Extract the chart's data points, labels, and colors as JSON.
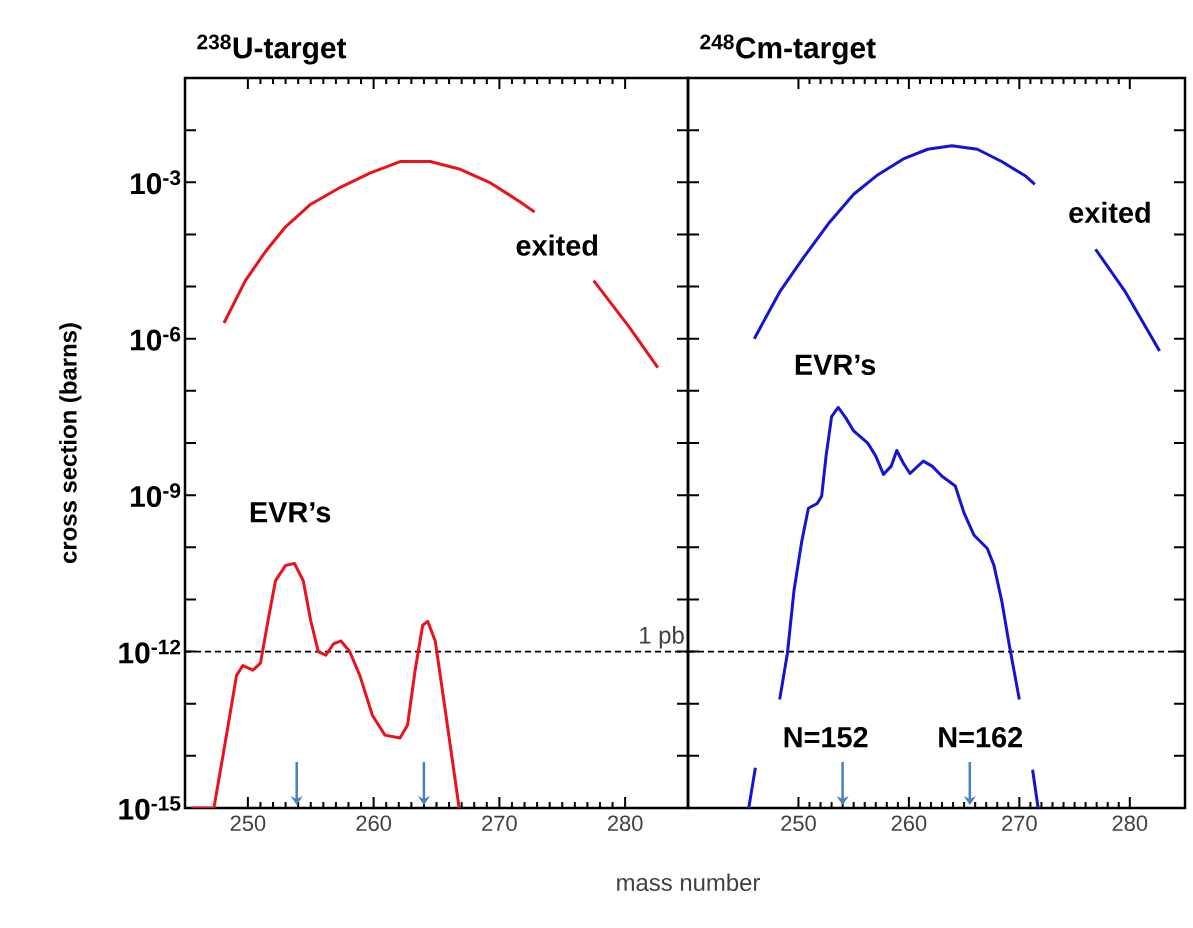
{
  "chart_data": [
    {
      "type": "line",
      "title": "$^{238}$U-target",
      "xlabel": "mass number",
      "ylabel": "cross section  (barns)",
      "log": "y",
      "xlim": [
        245,
        285
      ],
      "ylim": [
        1e-15,
        0.1
      ],
      "xticks": [
        250,
        260,
        270,
        280
      ],
      "yticks": [
        {
          "value": 1e-15,
          "label": "10$^{-15}$"
        },
        {
          "value": 1e-14,
          "label": null
        },
        {
          "value": 1e-13,
          "label": null
        },
        {
          "value": 1e-12,
          "label": "10$^{-12}$"
        },
        {
          "value": 1e-11,
          "label": null
        },
        {
          "value": 1e-10,
          "label": null
        },
        {
          "value": 1e-09,
          "label": "10$^{-9}$"
        },
        {
          "value": 1e-08,
          "label": null
        },
        {
          "value": 1e-07,
          "label": null
        },
        {
          "value": 1e-06,
          "label": "10$^{-6}$"
        },
        {
          "value": 1e-05,
          "label": null
        },
        {
          "value": 0.0001,
          "label": null
        },
        {
          "value": 0.001,
          "label": "10$^{-3}$"
        },
        {
          "value": 0.01,
          "label": null
        }
      ],
      "series": [
        {
          "color": "#e8141c",
          "x": [
            248.1,
            249.8,
            251.4,
            253.0,
            255.0,
            257.4,
            259.7,
            262.1,
            264.5,
            266.8,
            269.2,
            271.6,
            272.8,
            275,
            277.5,
            280.3,
            282.6
          ],
          "values": [
            2e-06,
            1.3e-05,
            4.7e-05,
            0.00014,
            0.00038,
            0.00081,
            0.0015,
            0.0025,
            0.0025,
            0.0018,
            0.001,
            0.00043,
            0.00027,
            null,
            1.3e-05,
            1.7e-06,
            2.8e-07
          ]
        },
        {
          "color": "#e8141c",
          "x": [
            245.5,
            247.3,
            248.3,
            249.1,
            249.6,
            250.4,
            251.0,
            251.6,
            252.2,
            253.0,
            253.7,
            254.4,
            255.0,
            255.6,
            256.2,
            256.8,
            257.4,
            258.1,
            258.9,
            259.9,
            260.9,
            262.1,
            262.7,
            263.3,
            263.9,
            264.3,
            264.9,
            265.7,
            266.8
          ],
          "values": [
            1e-15,
            1e-15,
            2.5e-14,
            3.5e-13,
            5.4e-13,
            4.4e-13,
            6e-13,
            3.9e-12,
            2.3e-11,
            4.5e-11,
            4.9e-11,
            2.3e-11,
            3.9e-12,
            1e-12,
            8.5e-13,
            1.4e-12,
            1.6e-12,
            1e-12,
            3.5e-13,
            6e-14,
            2.5e-14,
            2.2e-14,
            3.9e-14,
            4.4e-13,
            3.2e-12,
            3.8e-12,
            1.6e-12,
            7.4e-14,
            1e-15
          ]
        }
      ],
      "ref_lines": [
        {
          "axis": "y",
          "value": 1e-12,
          "label": "1 pb",
          "color": "#000000",
          "line_style": "dashed"
        }
      ],
      "annotations": [
        "exited",
        "EVR’s"
      ]
    },
    {
      "type": "line",
      "title": "$^{248}$Cm-target",
      "log": "y",
      "xlim": [
        240,
        285
      ],
      "ylim": [
        1e-15,
        0.1
      ],
      "tick_labels": "x",
      "xticks": [
        250,
        260,
        270,
        280
      ],
      "yticks": [
        {
          "value": 1e-15,
          "label": null
        },
        {
          "value": 1e-14,
          "label": null
        },
        {
          "value": 1e-13,
          "label": null
        },
        {
          "value": 1e-12,
          "label": null
        },
        {
          "value": 1e-11,
          "label": null
        },
        {
          "value": 1e-10,
          "label": null
        },
        {
          "value": 1e-09,
          "label": null
        },
        {
          "value": 1e-08,
          "label": null
        },
        {
          "value": 1e-07,
          "label": null
        },
        {
          "value": 1e-06,
          "label": null
        },
        {
          "value": 1e-05,
          "label": null
        },
        {
          "value": 0.0001,
          "label": null
        },
        {
          "value": 0.001,
          "label": null
        },
        {
          "value": 0.01,
          "label": null
        }
      ],
      "series": [
        {
          "color": "#1414d2",
          "x": [
            246.0,
            248.3,
            250.5,
            252.8,
            255.0,
            257.2,
            259.5,
            261.7,
            263.9,
            266.2,
            268.4,
            270.6,
            271.4,
            274,
            276.9,
            279.6,
            282.7
          ],
          "values": [
            1e-06,
            7.9e-06,
            3.7e-05,
            0.00017,
            0.00059,
            0.0014,
            0.0028,
            0.0043,
            0.005,
            0.0043,
            0.0025,
            0.0013,
            0.00091,
            null,
            5.2e-05,
            7.9e-06,
            5.8e-07
          ]
        },
        {
          "color": "#1414d2",
          "x": [
            245.5,
            246.1,
            247,
            248.3,
            249.0,
            249.6,
            250.3,
            250.9,
            251.7,
            252.1,
            252.5,
            253.0,
            253.6,
            254.3,
            255.0,
            256.3,
            257.0,
            257.7,
            258.4,
            258.9,
            259.5,
            260.1,
            261.3,
            262.1,
            263.0,
            264.2,
            265.0,
            265.9,
            267.1,
            267.7,
            268.4,
            269.1,
            270.0,
            270.5,
            271.2,
            271.7
          ],
          "values": [
            1e-15,
            5.9e-15,
            null,
            1.2e-13,
            9.3e-13,
            1.5e-11,
            1.3e-10,
            5.6e-10,
            6.9e-10,
            9.5e-10,
            5.6e-09,
            3.2e-08,
            4.8e-08,
            3e-08,
            1.7e-08,
            9.8e-09,
            5.6e-09,
            2.5e-09,
            3.6e-09,
            7.2e-09,
            4.1e-09,
            2.6e-09,
            4.5e-09,
            3.6e-09,
            2.3e-09,
            1.5e-09,
            4.5e-10,
            1.7e-10,
            9.5e-11,
            4.5e-11,
            9.5e-12,
            1.3e-12,
            1.2e-13,
            null,
            5.4e-15,
            1e-15
          ]
        }
      ],
      "ref_lines": [
        {
          "axis": "y",
          "value": 1e-12,
          "color": "#000000",
          "line_style": "dashed"
        }
      ],
      "annotations": [
        "exited",
        "EVR’s",
        "N=152",
        "N=162"
      ]
    }
  ]
}
